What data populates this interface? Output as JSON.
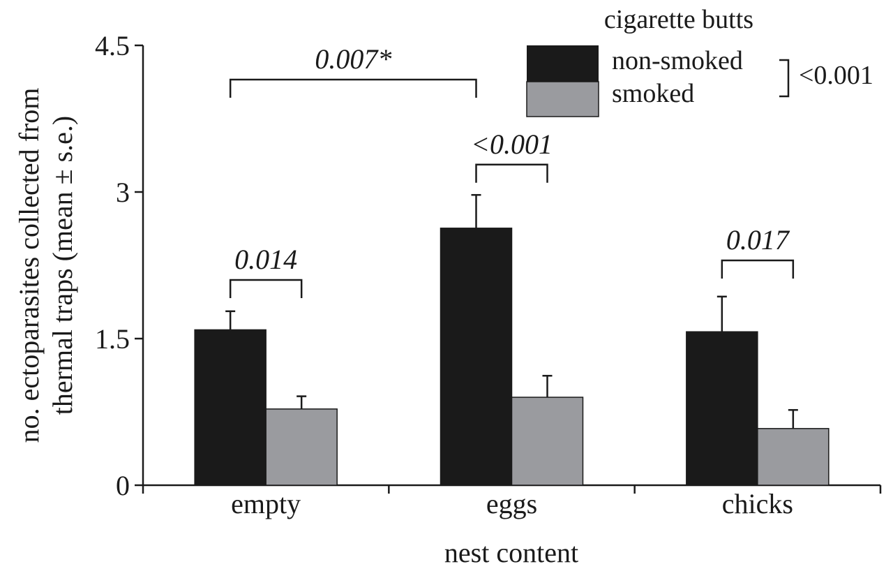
{
  "chart_data": {
    "type": "bar",
    "xlabel": "nest content",
    "ylabel_lines": [
      "no. ectoparasites collected from",
      "thermal traps (mean ± s.e.)"
    ],
    "categories": [
      "empty",
      "eggs",
      "chicks"
    ],
    "ylim": [
      0,
      4.5
    ],
    "yticks": [
      {
        "value": 0,
        "label": "0"
      },
      {
        "value": 1.5,
        "label": "1.5"
      },
      {
        "value": 3,
        "label": "3"
      },
      {
        "value": 4.5,
        "label": "4.5"
      }
    ],
    "grid": false,
    "legend_title": "cigarette butts",
    "legend_position": "top-right",
    "series": [
      {
        "name": "non-smoked",
        "color": "#1a1a1a",
        "values": [
          1.59,
          2.63,
          1.57
        ],
        "errors": [
          0.19,
          0.34,
          0.36
        ]
      },
      {
        "name": "smoked",
        "color": "#9a9b9f",
        "values": [
          0.78,
          0.9,
          0.58
        ],
        "errors": [
          0.13,
          0.22,
          0.19
        ]
      }
    ],
    "annotations": [
      {
        "text": "0.014",
        "category_index": 0,
        "level": 2.1
      },
      {
        "text": "<0.001",
        "category_index": 1,
        "level": 3.28
      },
      {
        "text": "0.017",
        "category_index": 2,
        "level": 2.3
      },
      {
        "text": "0.007*",
        "from_category_index": 0,
        "to_category_index": 1,
        "level": 4.15
      },
      {
        "text": "<0.001",
        "legend": true
      }
    ]
  }
}
